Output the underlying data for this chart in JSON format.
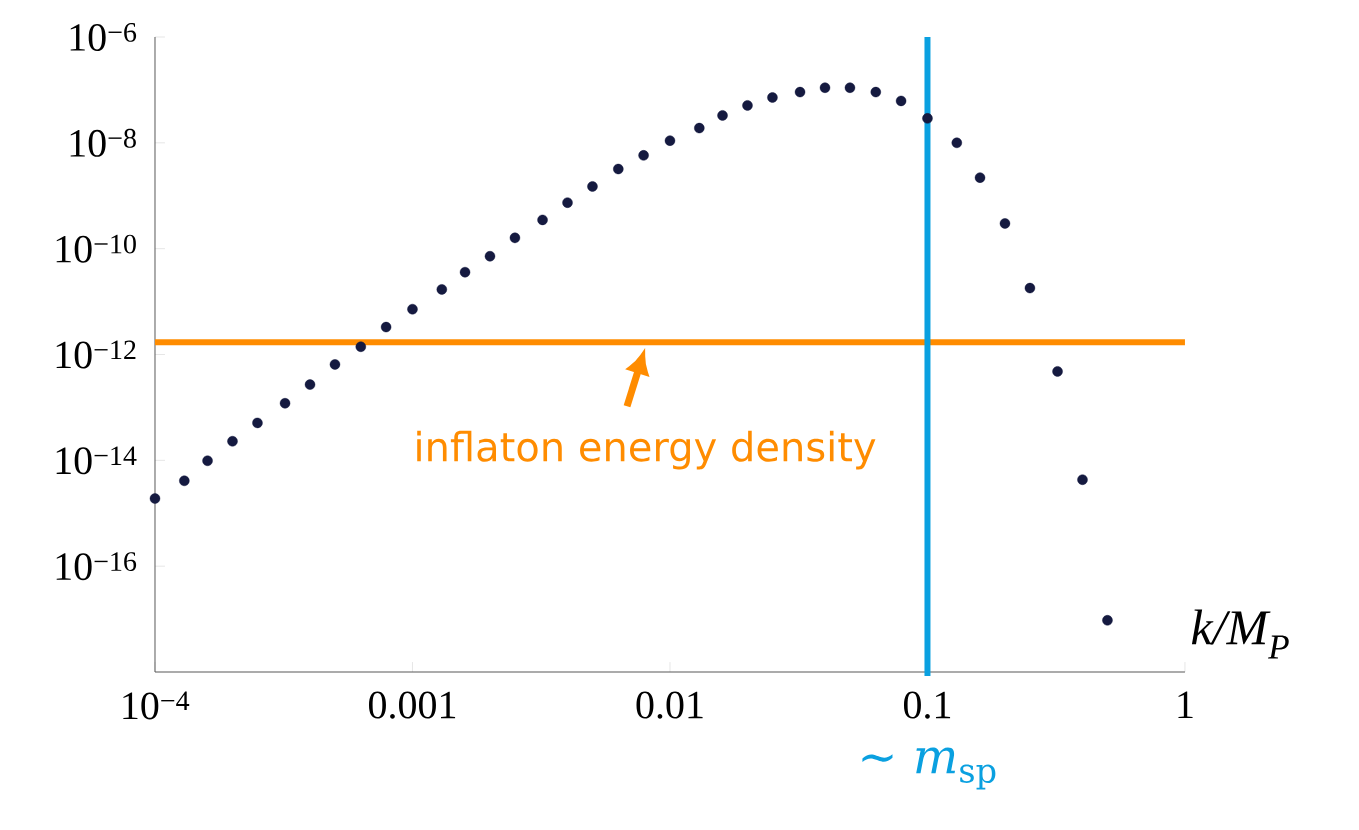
{
  "chart_data": {
    "type": "scatter",
    "x": [
      0.0001,
      0.00013,
      0.00016,
      0.0002,
      0.00025,
      0.00032,
      0.0004,
      0.0005,
      0.00063,
      0.00079,
      0.001,
      0.0013,
      0.0016,
      0.002,
      0.0025,
      0.0032,
      0.004,
      0.005,
      0.0063,
      0.0079,
      0.01,
      0.013,
      0.016,
      0.02,
      0.025,
      0.032,
      0.04,
      0.05,
      0.063,
      0.079,
      0.1,
      0.13,
      0.16,
      0.2,
      0.25,
      0.32,
      0.4,
      0.5
    ],
    "xlabel": "k/M$_{P}$",
    "series": [
      {
        "color": "#151a40",
        "values": [
          1.9e-15,
          4.1e-15,
          9.8e-15,
          2.3e-14,
          5.1e-14,
          1.2e-13,
          2.7e-13,
          6.5e-13,
          1.4e-12,
          3.3e-12,
          7.2e-12,
          1.7e-11,
          3.6e-11,
          7.2e-11,
          1.6e-10,
          3.5e-10,
          7.4e-10,
          1.5e-09,
          3.2e-09,
          5.8e-09,
          1.1e-08,
          1.9e-08,
          3.3e-08,
          5.1e-08,
          7.2e-08,
          9.1e-08,
          1.1e-07,
          1.1e-07,
          9.1e-08,
          6.2e-08,
          2.9e-08,
          1e-08,
          2.2e-09,
          3e-10,
          1.8e-11,
          4.8e-13,
          4.3e-15,
          9.5e-18
        ]
      }
    ],
    "log": "xy",
    "grid": false,
    "xlim": [
      0.0001,
      1
    ],
    "ylim": [
      1e-18,
      1e-06
    ],
    "xticks": [
      {
        "value": 0.0001,
        "label": "10$^{−4}$"
      },
      0.001,
      0.01,
      0.1,
      1
    ],
    "yticks": [
      {
        "value": 1e-06,
        "label": "10$^{−6}$"
      },
      {
        "value": 1e-08,
        "label": "10$^{−8}$"
      },
      {
        "value": 1e-10,
        "label": "10$^{−10}$"
      },
      {
        "value": 1e-12,
        "label": "10$^{−12}$"
      },
      {
        "value": 1e-14,
        "label": "10$^{−14}$"
      },
      {
        "value": 1e-16,
        "label": "10$^{−16}$"
      }
    ],
    "ref_lines": [
      {
        "axis": "y",
        "value": 1.7e-12,
        "color": "#ff8c00"
      },
      {
        "axis": "x",
        "value": 0.1,
        "label": "∼ *m*$_{sp}$",
        "color": "#0aa0e0"
      }
    ],
    "annotations": [
      {
        "text": "inflaton energy density",
        "x": 0.008,
        "y": 1.7e-12
      }
    ]
  }
}
